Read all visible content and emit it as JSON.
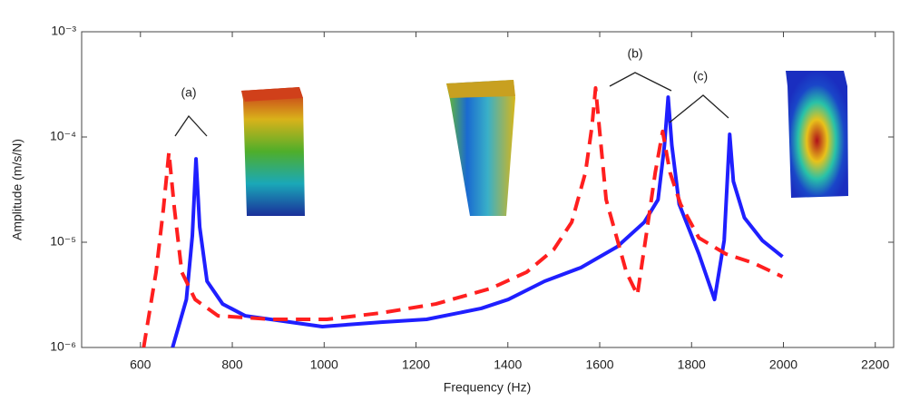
{
  "chart_data": {
    "type": "line",
    "xlabel": "Frequency (Hz)",
    "ylabel": "Amplitude (m/s/N)",
    "xlim": [
      472,
      2240
    ],
    "xticks": [
      600,
      800,
      1000,
      1200,
      1400,
      1600,
      1800,
      2000,
      2200
    ],
    "ylim": [
      1e-06,
      0.001
    ],
    "yscale": "log",
    "yticks": [
      {
        "value": 1e-06,
        "label": "10⁻⁶"
      },
      {
        "value": 1e-05,
        "label": "10⁻⁵"
      },
      {
        "value": 0.0001,
        "label": "10⁻⁴"
      },
      {
        "value": 0.001,
        "label": "10⁻³"
      }
    ],
    "grid": false,
    "annotations": [
      "(a)",
      "(b)",
      "(c)"
    ],
    "series": [
      {
        "color": "#1f1fff",
        "style": "solid",
        "x": [
          670,
          700,
          713,
          721,
          729,
          745,
          779,
          828,
          927,
          996,
          1124,
          1223,
          1342,
          1401,
          1480,
          1559,
          1638,
          1697,
          1727,
          1741,
          1749,
          1757,
          1773,
          1816,
          1850,
          1871,
          1883,
          1891,
          1915,
          1954,
          1998
        ],
        "values": [
          1e-06,
          2.86e-06,
          1.15e-05,
          6.2e-05,
          1.4e-05,
          4.26e-06,
          2.59e-06,
          2e-06,
          1.74e-06,
          1.58e-06,
          1.74e-06,
          1.85e-06,
          2.35e-06,
          2.86e-06,
          4.26e-06,
          5.74e-06,
          9.05e-06,
          1.55e-05,
          2.54e-05,
          8.36e-05,
          0.000239,
          8.36e-05,
          2.3e-05,
          7.73e-06,
          2.86e-06,
          1.04e-05,
          0.000106,
          3.79e-05,
          1.71e-05,
          1.04e-05,
          7.28e-06
        ]
      },
      {
        "color": "#ff1f1f",
        "style": "dashed",
        "x": [
          607,
          634,
          650,
          662,
          674,
          690,
          719,
          769,
          887,
          1006,
          1124,
          1243,
          1362,
          1441,
          1500,
          1539,
          1569,
          1583,
          1591,
          1599,
          1614,
          1658,
          1682,
          1701,
          1721,
          1737,
          1753,
          1776,
          1816,
          1875,
          1935,
          1998
        ],
        "values": [
          1e-06,
          5.2e-06,
          2.08e-05,
          7.13e-05,
          2.08e-05,
          5.2e-06,
          2.86e-06,
          2e-06,
          1.85e-06,
          1.85e-06,
          2.13e-06,
          2.59e-06,
          3.63e-06,
          5.2e-06,
          8.53e-06,
          1.55e-05,
          4.61e-05,
          0.000125,
          0.000292,
          0.000125,
          2.54e-05,
          5.2e-06,
          3.16e-06,
          1.15e-05,
          4.61e-05,
          0.000113,
          4.61e-05,
          2.3e-05,
          1.1e-05,
          7.73e-06,
          6.34e-06,
          4.7e-06
        ]
      }
    ]
  }
}
